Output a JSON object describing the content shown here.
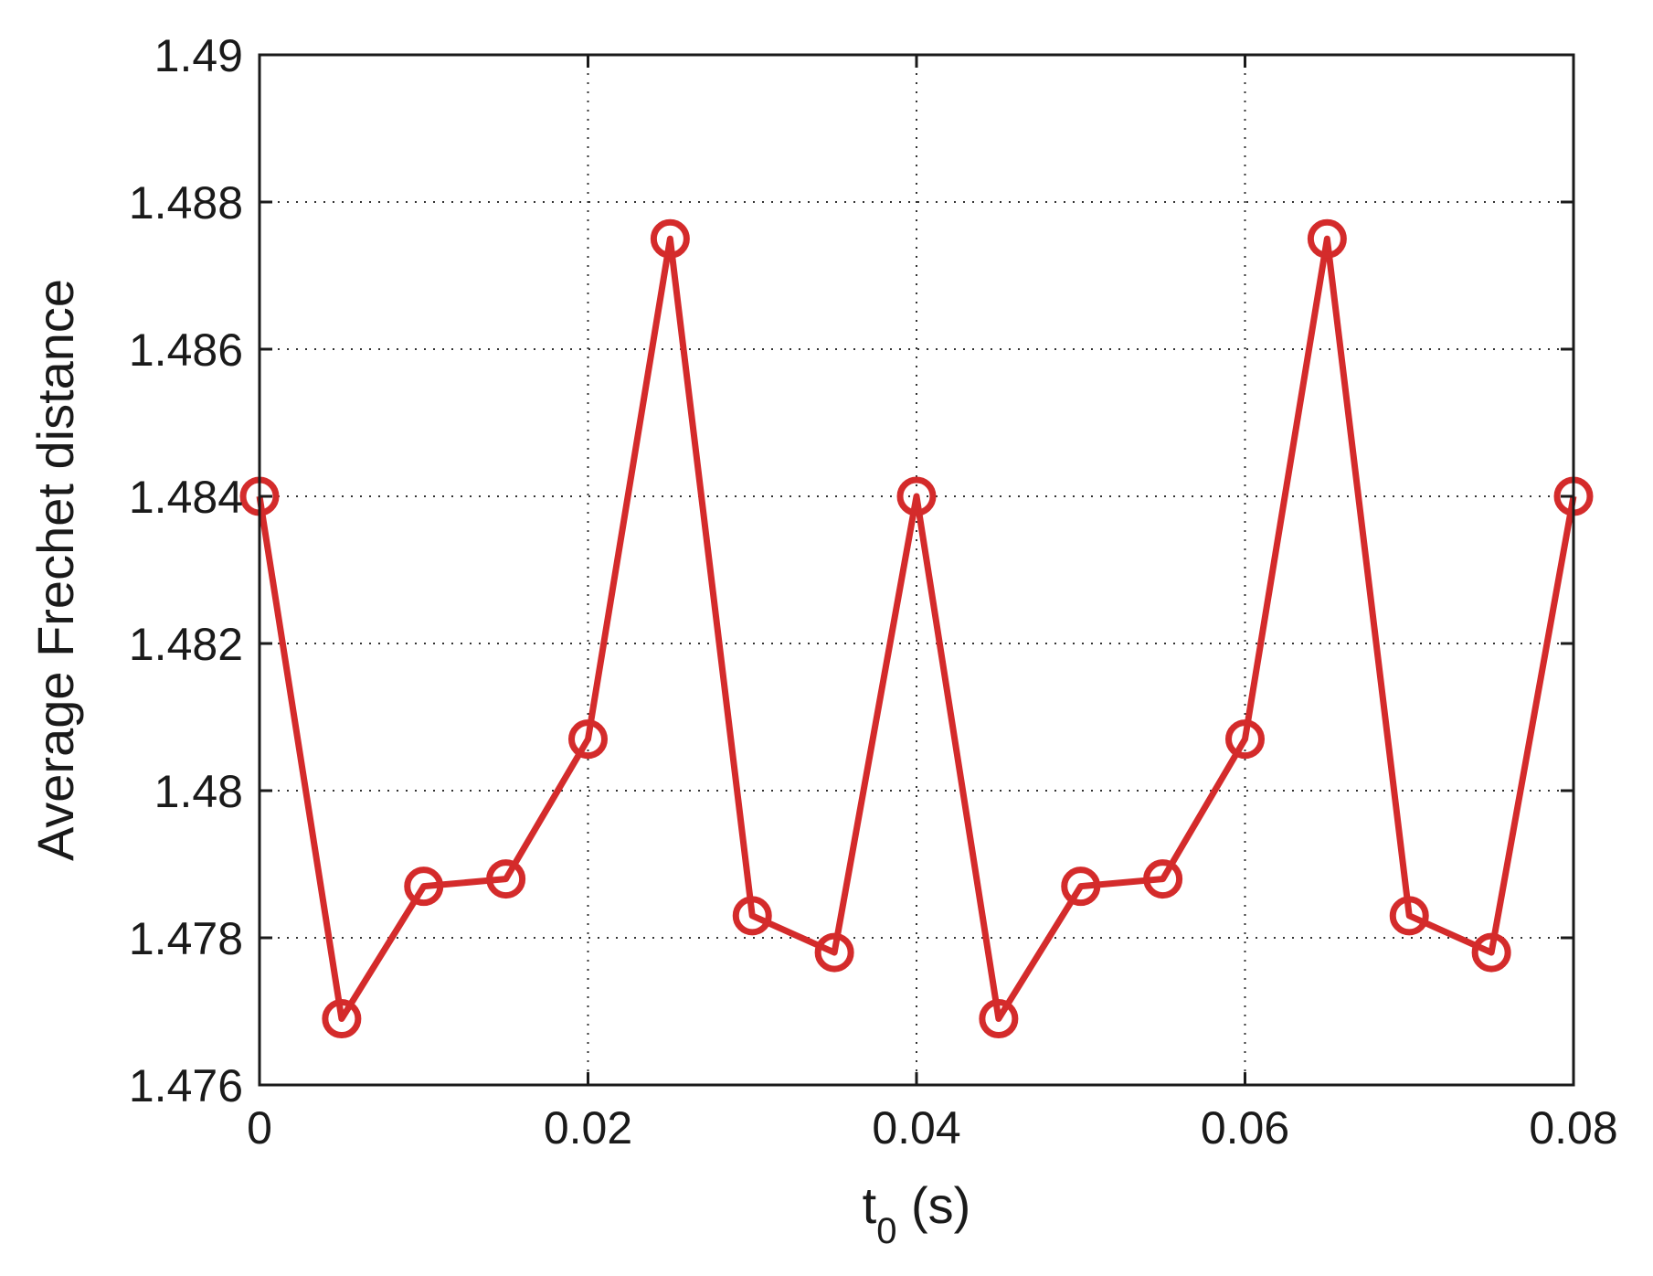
{
  "chart_data": {
    "type": "line",
    "title": "",
    "xlabel": "t",
    "xlabel_sub": "0",
    "xlabel_unit": " (s)",
    "ylabel": "Average Frechet distance",
    "xlim": [
      0,
      0.08
    ],
    "ylim": [
      1.476,
      1.49
    ],
    "xticks": [
      0,
      0.02,
      0.04,
      0.06,
      0.08
    ],
    "xtick_labels": [
      "0",
      "0.02",
      "0.04",
      "0.06",
      "0.08"
    ],
    "yticks": [
      1.476,
      1.478,
      1.48,
      1.482,
      1.484,
      1.486,
      1.488,
      1.49
    ],
    "ytick_labels": [
      "1.476",
      "1.478",
      "1.48",
      "1.482",
      "1.484",
      "1.486",
      "1.488",
      "1.49"
    ],
    "grid": true,
    "legend": "none",
    "series": [
      {
        "color": "#d42b2b",
        "marker": "circle",
        "x": [
          0,
          0.005,
          0.01,
          0.015,
          0.02,
          0.025,
          0.03,
          0.035,
          0.04,
          0.045,
          0.05,
          0.055,
          0.06,
          0.065,
          0.07,
          0.075,
          0.08
        ],
        "y": [
          1.484,
          1.4769,
          1.4787,
          1.4788,
          1.4807,
          1.4875,
          1.4783,
          1.4778,
          1.484,
          1.4769,
          1.4787,
          1.4788,
          1.4807,
          1.4875,
          1.4783,
          1.4778,
          1.484
        ]
      }
    ]
  }
}
